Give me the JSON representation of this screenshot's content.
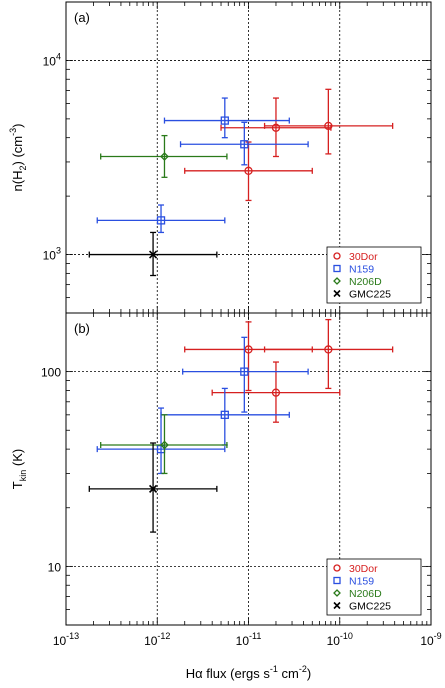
{
  "chart_data": [
    {
      "type": "scatter",
      "panel_label": "(a)",
      "ylabel": "n(H₂) (cm⁻³)",
      "ylabel_main": "n(H",
      "ylabel_sub": "2",
      "ylabel_tail": ") (cm",
      "ylabel_sup": "-3",
      "ylabel_end": ")",
      "xscale": "log",
      "yscale": "log",
      "xlim": [
        1e-13,
        1e-09
      ],
      "ylim": [
        500,
        20000
      ],
      "yticks": [
        {
          "v": 1000,
          "base": "10",
          "exp": "3"
        },
        {
          "v": 10000,
          "base": "10",
          "exp": "4"
        }
      ],
      "grid": true,
      "legend_position": "bottom-right",
      "series": [
        {
          "name": "30Dor",
          "color": "#d62020",
          "marker": "circle",
          "points": [
            {
              "x": 1e-11,
              "y": 2700,
              "xerr": [
                2e-12,
                5e-11
              ],
              "yerr": [
                1900,
                3800
              ]
            },
            {
              "x": 2e-11,
              "y": 4500,
              "xerr": [
                5e-12,
                8e-11
              ],
              "yerr": [
                3200,
                6400
              ]
            },
            {
              "x": 7.5e-11,
              "y": 4600,
              "xerr": [
                1.5e-11,
                3.8e-10
              ],
              "yerr": [
                3300,
                7100
              ]
            }
          ]
        },
        {
          "name": "N159",
          "color": "#2a4fe0",
          "marker": "square",
          "points": [
            {
              "x": 1.1e-12,
              "y": 1500,
              "xerr": [
                2.2e-13,
                5.5e-12
              ],
              "yerr": [
                1300,
                1800
              ]
            },
            {
              "x": 5.5e-12,
              "y": 4900,
              "xerr": [
                1.2e-12,
                2.8e-11
              ],
              "yerr": [
                4000,
                6400
              ]
            },
            {
              "x": 9e-12,
              "y": 3700,
              "xerr": [
                1.8e-12,
                4.5e-11
              ],
              "yerr": [
                2900,
                4800
              ]
            }
          ]
        },
        {
          "name": "N206D",
          "color": "#2a7a1a",
          "marker": "diamond",
          "points": [
            {
              "x": 1.2e-12,
              "y": 3200,
              "xerr": [
                2.4e-13,
                5.8e-12
              ],
              "yerr": [
                2500,
                4100
              ]
            }
          ]
        },
        {
          "name": "GMC225",
          "color": "#000000",
          "marker": "x",
          "points": [
            {
              "x": 9e-13,
              "y": 1000,
              "xerr": [
                1.8e-13,
                4.5e-12
              ],
              "yerr": [
                780,
                1300
              ]
            }
          ]
        }
      ]
    },
    {
      "type": "scatter",
      "panel_label": "(b)",
      "ylabel": "Tkin (K)",
      "ylabel_main": "T",
      "ylabel_sub": "kin",
      "ylabel_tail": " (K)",
      "xlabel": "Hα flux (ergs s⁻¹ cm⁻²)",
      "xlabel_a": "Hα flux (ergs s",
      "xlabel_sup1": "-1",
      "xlabel_b": " cm",
      "xlabel_sup2": "-2",
      "xlabel_c": ")",
      "xscale": "log",
      "yscale": "log",
      "xlim": [
        1e-13,
        1e-09
      ],
      "ylim": [
        5,
        200
      ],
      "yticks": [
        {
          "v": 10,
          "label": "10"
        },
        {
          "v": 100,
          "label": "100"
        }
      ],
      "xticks": [
        {
          "v": 1e-13,
          "base": "10",
          "exp": "-13"
        },
        {
          "v": 1e-12,
          "base": "10",
          "exp": "-12"
        },
        {
          "v": 1e-11,
          "base": "10",
          "exp": "-11"
        },
        {
          "v": 1e-10,
          "base": "10",
          "exp": "-10"
        },
        {
          "v": 1e-09,
          "base": "10",
          "exp": "-9"
        }
      ],
      "grid": true,
      "legend_position": "bottom-right",
      "series": [
        {
          "name": "30Dor",
          "color": "#d62020",
          "marker": "circle",
          "points": [
            {
              "x": 1e-11,
              "y": 130,
              "xerr": [
                2e-12,
                5e-11
              ],
              "yerr": [
                80,
                180
              ]
            },
            {
              "x": 2e-11,
              "y": 78,
              "xerr": [
                4e-12,
                1e-10
              ],
              "yerr": [
                55,
                112
              ]
            },
            {
              "x": 7.5e-11,
              "y": 130,
              "xerr": [
                1.5e-11,
                3.8e-10
              ],
              "yerr": [
                82,
                185
              ]
            }
          ]
        },
        {
          "name": "N159",
          "color": "#2a4fe0",
          "marker": "square",
          "points": [
            {
              "x": 1.1e-12,
              "y": 40,
              "xerr": [
                2.2e-13,
                5.5e-12
              ],
              "yerr": [
                30,
                65
              ]
            },
            {
              "x": 5.5e-12,
              "y": 60,
              "xerr": [
                1.1e-12,
                2.8e-11
              ],
              "yerr": [
                42,
                82
              ]
            },
            {
              "x": 9e-12,
              "y": 100,
              "xerr": [
                1.9e-12,
                4.5e-11
              ],
              "yerr": [
                62,
                150
              ]
            }
          ]
        },
        {
          "name": "N206D",
          "color": "#2a7a1a",
          "marker": "diamond",
          "points": [
            {
              "x": 1.2e-12,
              "y": 42,
              "xerr": [
                2.4e-13,
                5.8e-12
              ],
              "yerr": [
                30,
                60
              ]
            }
          ]
        },
        {
          "name": "GMC225",
          "color": "#000000",
          "marker": "x",
          "points": [
            {
              "x": 9e-13,
              "y": 25,
              "xerr": [
                1.8e-13,
                4.5e-12
              ],
              "yerr": [
                15,
                43
              ]
            }
          ]
        }
      ]
    }
  ]
}
